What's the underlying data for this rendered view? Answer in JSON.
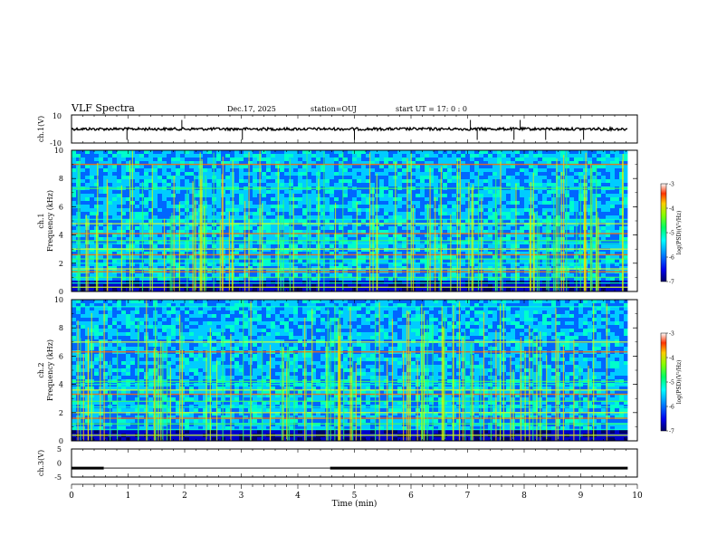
{
  "header": {
    "title": "VLF Spectra",
    "date": "Dec.17, 2025",
    "station": "station=OUJ",
    "start_ut": "start  UT =   17: 0  : 0"
  },
  "colors": {
    "colormap": [
      "#000066",
      "#0000cc",
      "#0066ff",
      "#00ccff",
      "#00ffcc",
      "#33ff33",
      "#ccff00",
      "#ffcc00",
      "#ff3300",
      "#cc0000"
    ]
  },
  "chart_data": [
    {
      "type": "line",
      "name": "ch1-waveform",
      "ylabel": "ch.1(V)",
      "ylim": [
        -10,
        10
      ],
      "yticks": [
        "10",
        "-10"
      ],
      "baseline": 0,
      "x_range_min": [
        0,
        9.83
      ],
      "spikes_min": [
        0.98,
        1.95,
        3.02,
        5.0,
        7.05,
        7.17,
        7.82,
        7.93,
        8.38,
        9.05
      ]
    },
    {
      "type": "heatmap",
      "name": "ch1-spectrogram",
      "ylabel": "ch.1\nFrequency (kHz)",
      "ylim": [
        0,
        10
      ],
      "yticks": [
        "0",
        "2",
        "4",
        "6",
        "8",
        "10"
      ],
      "x_range_min": [
        0,
        9.83
      ],
      "colorbar": {
        "label": "log(PSD)(V²/Hz)",
        "ticks": [
          "-3",
          "-4",
          "-5",
          "-6",
          "-7"
        ],
        "range": [
          -7,
          -3
        ]
      },
      "bands_khz": [
        0.3,
        0.6,
        1.0,
        1.4,
        1.6,
        2.0,
        2.3,
        2.6,
        3.0,
        3.4,
        3.6,
        4.1,
        4.8,
        5.1,
        7.3,
        9.0
      ]
    },
    {
      "type": "heatmap",
      "name": "ch2-spectrogram",
      "ylabel": "ch.2\nFrequency (kHz)",
      "ylim": [
        0,
        10
      ],
      "yticks": [
        "0",
        "2",
        "4",
        "6",
        "8",
        "10"
      ],
      "x_range_min": [
        0,
        9.83
      ],
      "colorbar": {
        "label": "log(PSD)(V²/Hz)",
        "ticks": [
          "-3",
          "-4",
          "-5",
          "-6",
          "-7"
        ],
        "range": [
          -7,
          -3
        ]
      },
      "bands_khz": [
        0.4,
        0.8,
        1.2,
        1.6,
        2.0,
        2.4,
        2.8,
        3.3,
        3.6,
        4.0,
        4.2,
        6.3,
        7.0,
        9.5
      ]
    },
    {
      "type": "line",
      "name": "ch3-signal",
      "ylabel": "ch.3(V)",
      "ylim": [
        -5,
        5
      ],
      "yticks": [
        "5",
        "0",
        "-5"
      ],
      "level_v": -1.8,
      "segments_min": [
        [
          0,
          0.57
        ],
        [
          4.57,
          9.83
        ]
      ],
      "xlabel": "Time (min)",
      "xlim": [
        0,
        10
      ],
      "xticks": [
        "0",
        "1",
        "2",
        "3",
        "4",
        "5",
        "6",
        "7",
        "8",
        "9",
        "10"
      ]
    }
  ]
}
